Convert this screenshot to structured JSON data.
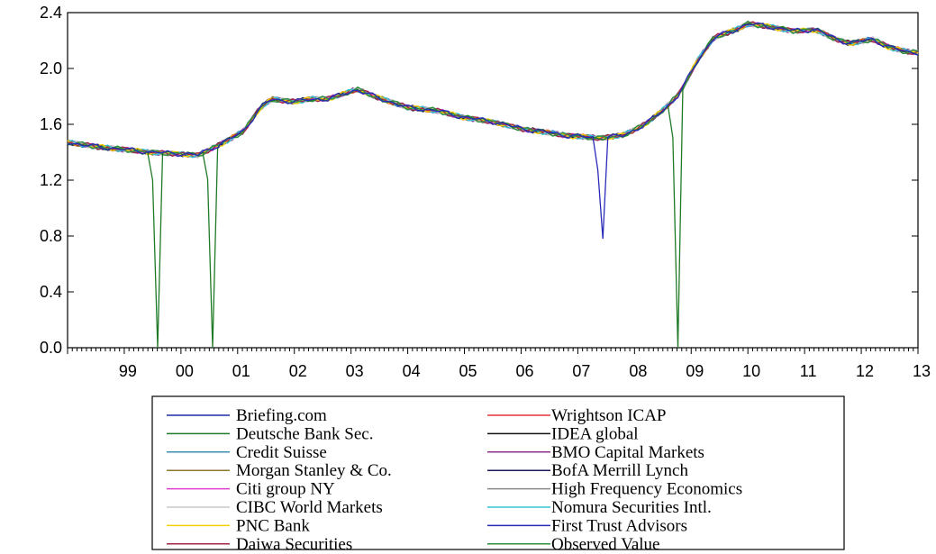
{
  "chart_data": {
    "type": "line",
    "title": "",
    "xlabel": "",
    "ylabel": "",
    "ylim": [
      0.0,
      2.4
    ],
    "xlim": [
      1998.5,
      2013.5
    ],
    "y_ticks": [
      "0.0",
      "0.4",
      "0.8",
      "1.2",
      "1.6",
      "2.0",
      "2.4"
    ],
    "x_ticks": [
      {
        "label": "99",
        "x": 1999.5
      },
      {
        "label": "00",
        "x": 2000.5
      },
      {
        "label": "01",
        "x": 2001.5
      },
      {
        "label": "02",
        "x": 2002.5
      },
      {
        "label": "03",
        "x": 2003.5
      },
      {
        "label": "04",
        "x": 2004.5
      },
      {
        "label": "05",
        "x": 2005.5
      },
      {
        "label": "06",
        "x": 2006.5
      },
      {
        "label": "07",
        "x": 2007.5
      },
      {
        "label": "08",
        "x": 2008.5
      },
      {
        "label": "09",
        "x": 2009.5
      },
      {
        "label": "10",
        "x": 2010.5
      },
      {
        "label": "11",
        "x": 2011.5
      },
      {
        "label": "12",
        "x": 2012.5
      },
      {
        "label": "13",
        "x": 2013.5
      }
    ],
    "grid": false,
    "legend_position": "bottom",
    "base_curve": [
      [
        1998.5,
        1.47
      ],
      [
        1999.0,
        1.44
      ],
      [
        1999.5,
        1.42
      ],
      [
        2000.0,
        1.4
      ],
      [
        2000.5,
        1.39
      ],
      [
        2000.8,
        1.38
      ],
      [
        2001.0,
        1.42
      ],
      [
        2001.3,
        1.48
      ],
      [
        2001.6,
        1.55
      ],
      [
        2001.9,
        1.72
      ],
      [
        2002.1,
        1.78
      ],
      [
        2002.5,
        1.76
      ],
      [
        2002.8,
        1.78
      ],
      [
        2003.1,
        1.78
      ],
      [
        2003.4,
        1.82
      ],
      [
        2003.6,
        1.85
      ],
      [
        2003.9,
        1.8
      ],
      [
        2004.2,
        1.76
      ],
      [
        2004.5,
        1.72
      ],
      [
        2005.0,
        1.7
      ],
      [
        2005.5,
        1.65
      ],
      [
        2006.0,
        1.62
      ],
      [
        2006.5,
        1.57
      ],
      [
        2007.0,
        1.54
      ],
      [
        2007.3,
        1.52
      ],
      [
        2007.6,
        1.51
      ],
      [
        2007.9,
        1.5
      ],
      [
        2008.3,
        1.52
      ],
      [
        2008.7,
        1.6
      ],
      [
        2009.0,
        1.7
      ],
      [
        2009.3,
        1.82
      ],
      [
        2009.6,
        2.05
      ],
      [
        2009.9,
        2.22
      ],
      [
        2010.3,
        2.28
      ],
      [
        2010.5,
        2.32
      ],
      [
        2010.9,
        2.3
      ],
      [
        2011.3,
        2.27
      ],
      [
        2011.7,
        2.28
      ],
      [
        2012.0,
        2.22
      ],
      [
        2012.3,
        2.18
      ],
      [
        2012.7,
        2.21
      ],
      [
        2013.0,
        2.15
      ],
      [
        2013.3,
        2.12
      ],
      [
        2013.6,
        2.11
      ],
      [
        2014.0,
        2.08
      ],
      [
        2014.5,
        2.06
      ]
    ],
    "series": [
      {
        "name": "Briefing.com",
        "color": "#1c2fa8",
        "drops": []
      },
      {
        "name": "Wrightson ICAP",
        "color": "#e8343d",
        "drops": []
      },
      {
        "name": "Deutsche Bank Sec.",
        "color": "#1f7a26",
        "drops": [
          {
            "x": 2000.05,
            "y": 0.0
          },
          {
            "x": 2001.1,
            "y": 0.0
          },
          {
            "x": 2009.25,
            "y": 0.0
          }
        ]
      },
      {
        "name": "IDEA global",
        "color": "#111111",
        "drops": []
      },
      {
        "name": "Credit Suisse",
        "color": "#3a8fb0",
        "drops": []
      },
      {
        "name": "BMO Capital Markets",
        "color": "#8c2f8c",
        "drops": []
      },
      {
        "name": "Morgan Stanley & Co.",
        "color": "#8b7a2b",
        "drops": []
      },
      {
        "name": "BofA Merrill Lynch",
        "color": "#1a1a5e",
        "drops": []
      },
      {
        "name": "Citi group NY",
        "color": "#e23fd0",
        "drops": []
      },
      {
        "name": "High Frequency Economics",
        "color": "#8a8a8a",
        "drops": []
      },
      {
        "name": "CIBC World Markets",
        "color": "#c8c8c8",
        "drops": []
      },
      {
        "name": "Nomura Securities Intl.",
        "color": "#35c4d6",
        "drops": []
      },
      {
        "name": "PNC Bank",
        "color": "#f2d000",
        "drops": []
      },
      {
        "name": "First Trust Advisors",
        "color": "#2a2ab8",
        "drops": [
          {
            "x": 2007.9,
            "y": 0.78
          }
        ]
      },
      {
        "name": "Daiwa Securities",
        "color": "#a0284a",
        "drops": []
      },
      {
        "name": "Observed Value",
        "color": "#2e8f3a",
        "drops": []
      }
    ]
  }
}
